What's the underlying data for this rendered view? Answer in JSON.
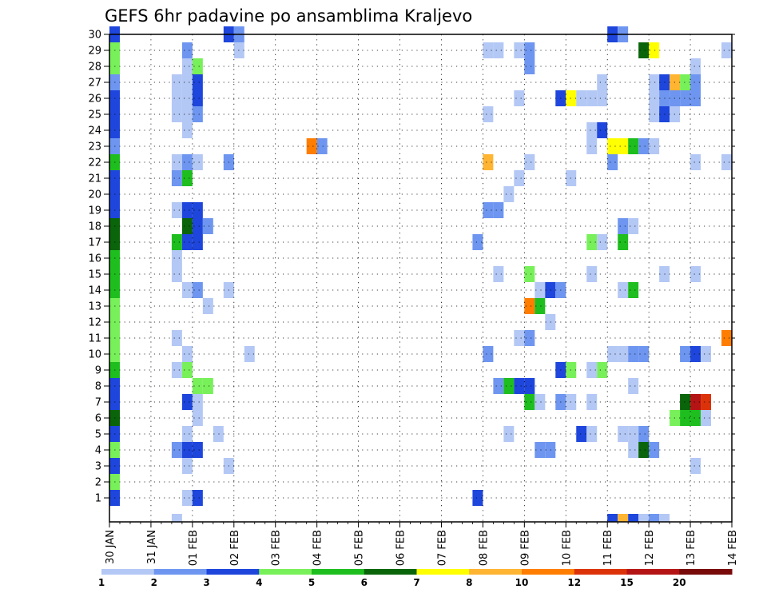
{
  "chart_data": {
    "type": "heatmap",
    "title": "GEFS 6hr padavine po ansamblima Kraljevo",
    "xlabel": "",
    "ylabel": "",
    "x_ticks": [
      "30 JAN",
      "31 JAN",
      "01 FEB",
      "02 FEB",
      "03 FEB",
      "04 FEB",
      "05 FEB",
      "06 FEB",
      "07 FEB",
      "08 FEB",
      "09 FEB",
      "10 FEB",
      "11 FEB",
      "12 FEB",
      "13 FEB",
      "14 FEB"
    ],
    "y_ticks": [
      1,
      2,
      3,
      4,
      5,
      6,
      7,
      8,
      9,
      10,
      11,
      12,
      13,
      14,
      15,
      16,
      17,
      18,
      19,
      20,
      21,
      22,
      23,
      24,
      25,
      26,
      27,
      28,
      29,
      30
    ],
    "x_unit": "6-hour steps from 30 JAN 00z",
    "ylim": [
      0,
      30
    ],
    "xlim": [
      0,
      60
    ],
    "grid": true,
    "colorbar": {
      "labels": [
        "1",
        "2",
        "3",
        "4",
        "5",
        "6",
        "7",
        "8",
        "10",
        "12",
        "15",
        "20"
      ],
      "label_positions": [
        0,
        1,
        2,
        3,
        4,
        5,
        6,
        7,
        8,
        9,
        10,
        11
      ],
      "colors": [
        "#b4c8f5",
        "#6e96f0",
        "#1e46dc",
        "#78f05a",
        "#1ebe1e",
        "#0a640a",
        "#ffff00",
        "#ffb432",
        "#ff7d00",
        "#dc320a",
        "#b41414",
        "#780a0a"
      ],
      "color_ranges": [
        "1-2",
        "2-3",
        "3-4",
        "4-5",
        "5-6",
        "6-7",
        "7-8",
        "8-10",
        "10-12",
        "12-15",
        "15-20",
        ">20"
      ]
    },
    "column0_colors": {
      "levels_descending_from_30": [
        "c",
        "d",
        "d",
        "b",
        "c",
        "c",
        "c",
        "b",
        "e",
        "c",
        "c",
        "c",
        "f",
        "f",
        "e",
        "e",
        "e",
        "d",
        "d",
        "d",
        "d",
        "e",
        "c",
        "c",
        "f",
        "c",
        "d",
        "c",
        "d",
        "c"
      ]
    },
    "cells": [
      [
        11,
        30,
        "c"
      ],
      [
        12,
        30,
        "b"
      ],
      [
        48,
        30,
        "c"
      ],
      [
        49,
        30,
        "b"
      ],
      [
        7,
        29,
        "b"
      ],
      [
        12,
        29,
        "a"
      ],
      [
        36,
        29,
        "a"
      ],
      [
        37,
        29,
        "a"
      ],
      [
        39,
        29,
        "a"
      ],
      [
        40,
        29,
        "b"
      ],
      [
        51,
        29,
        "f"
      ],
      [
        52,
        29,
        "g"
      ],
      [
        59,
        29,
        "a"
      ],
      [
        7,
        28,
        "a"
      ],
      [
        8,
        28,
        "d"
      ],
      [
        40,
        28,
        "b"
      ],
      [
        56,
        28,
        "a"
      ],
      [
        6,
        27,
        "a"
      ],
      [
        7,
        27,
        "a"
      ],
      [
        8,
        27,
        "c"
      ],
      [
        47,
        27,
        "a"
      ],
      [
        52,
        27,
        "a"
      ],
      [
        53,
        27,
        "c"
      ],
      [
        54,
        27,
        "h"
      ],
      [
        55,
        27,
        "d"
      ],
      [
        56,
        27,
        "b"
      ],
      [
        6,
        26,
        "a"
      ],
      [
        7,
        26,
        "a"
      ],
      [
        8,
        26,
        "c"
      ],
      [
        39,
        26,
        "a"
      ],
      [
        43,
        26,
        "c"
      ],
      [
        44,
        26,
        "g"
      ],
      [
        45,
        26,
        "a"
      ],
      [
        46,
        26,
        "a"
      ],
      [
        47,
        26,
        "a"
      ],
      [
        52,
        26,
        "a"
      ],
      [
        53,
        26,
        "b"
      ],
      [
        54,
        26,
        "b"
      ],
      [
        55,
        26,
        "b"
      ],
      [
        56,
        26,
        "b"
      ],
      [
        6,
        25,
        "a"
      ],
      [
        7,
        25,
        "a"
      ],
      [
        8,
        25,
        "b"
      ],
      [
        36,
        25,
        "a"
      ],
      [
        52,
        25,
        "a"
      ],
      [
        53,
        25,
        "c"
      ],
      [
        54,
        25,
        "a"
      ],
      [
        7,
        24,
        "a"
      ],
      [
        46,
        24,
        "a"
      ],
      [
        47,
        24,
        "c"
      ],
      [
        19,
        23,
        "i"
      ],
      [
        20,
        23,
        "b"
      ],
      [
        46,
        23,
        "a"
      ],
      [
        48,
        23,
        "g"
      ],
      [
        49,
        23,
        "g"
      ],
      [
        50,
        23,
        "e"
      ],
      [
        51,
        23,
        "b"
      ],
      [
        52,
        23,
        "a"
      ],
      [
        6,
        22,
        "a"
      ],
      [
        7,
        22,
        "b"
      ],
      [
        8,
        22,
        "a"
      ],
      [
        11,
        22,
        "b"
      ],
      [
        36,
        22,
        "h"
      ],
      [
        40,
        22,
        "a"
      ],
      [
        48,
        22,
        "b"
      ],
      [
        56,
        22,
        "a"
      ],
      [
        59,
        22,
        "a"
      ],
      [
        6,
        21,
        "b"
      ],
      [
        7,
        21,
        "e"
      ],
      [
        39,
        21,
        "a"
      ],
      [
        44,
        21,
        "a"
      ],
      [
        38,
        20,
        "a"
      ],
      [
        6,
        19,
        "a"
      ],
      [
        7,
        19,
        "c"
      ],
      [
        8,
        19,
        "c"
      ],
      [
        36,
        19,
        "b"
      ],
      [
        37,
        19,
        "b"
      ],
      [
        7,
        18,
        "f"
      ],
      [
        8,
        18,
        "c"
      ],
      [
        9,
        18,
        "b"
      ],
      [
        49,
        18,
        "b"
      ],
      [
        50,
        18,
        "a"
      ],
      [
        6,
        17,
        "e"
      ],
      [
        7,
        17,
        "c"
      ],
      [
        8,
        17,
        "c"
      ],
      [
        35,
        17,
        "b"
      ],
      [
        46,
        17,
        "d"
      ],
      [
        47,
        17,
        "a"
      ],
      [
        49,
        17,
        "e"
      ],
      [
        6,
        16,
        "a"
      ],
      [
        6,
        15,
        "a"
      ],
      [
        37,
        15,
        "a"
      ],
      [
        40,
        15,
        "d"
      ],
      [
        46,
        15,
        "a"
      ],
      [
        53,
        15,
        "a"
      ],
      [
        56,
        15,
        "a"
      ],
      [
        7,
        14,
        "a"
      ],
      [
        8,
        14,
        "b"
      ],
      [
        11,
        14,
        "a"
      ],
      [
        41,
        14,
        "a"
      ],
      [
        42,
        14,
        "c"
      ],
      [
        43,
        14,
        "b"
      ],
      [
        49,
        14,
        "a"
      ],
      [
        50,
        14,
        "e"
      ],
      [
        9,
        13,
        "a"
      ],
      [
        40,
        13,
        "i"
      ],
      [
        41,
        13,
        "e"
      ],
      [
        42,
        12,
        "a"
      ],
      [
        6,
        11,
        "a"
      ],
      [
        39,
        11,
        "a"
      ],
      [
        40,
        11,
        "b"
      ],
      [
        59,
        11,
        "i"
      ],
      [
        7,
        10,
        "a"
      ],
      [
        13,
        10,
        "a"
      ],
      [
        36,
        10,
        "b"
      ],
      [
        48,
        10,
        "a"
      ],
      [
        49,
        10,
        "a"
      ],
      [
        50,
        10,
        "b"
      ],
      [
        51,
        10,
        "b"
      ],
      [
        55,
        10,
        "b"
      ],
      [
        56,
        10,
        "c"
      ],
      [
        57,
        10,
        "a"
      ],
      [
        6,
        9,
        "a"
      ],
      [
        7,
        9,
        "d"
      ],
      [
        43,
        9,
        "c"
      ],
      [
        44,
        9,
        "d"
      ],
      [
        46,
        9,
        "a"
      ],
      [
        47,
        9,
        "d"
      ],
      [
        8,
        8,
        "d"
      ],
      [
        9,
        8,
        "d"
      ],
      [
        37,
        8,
        "b"
      ],
      [
        38,
        8,
        "e"
      ],
      [
        39,
        8,
        "c"
      ],
      [
        40,
        8,
        "c"
      ],
      [
        50,
        8,
        "a"
      ],
      [
        7,
        7,
        "c"
      ],
      [
        8,
        7,
        "a"
      ],
      [
        40,
        7,
        "e"
      ],
      [
        41,
        7,
        "a"
      ],
      [
        43,
        7,
        "b"
      ],
      [
        44,
        7,
        "a"
      ],
      [
        46,
        7,
        "a"
      ],
      [
        55,
        7,
        "f"
      ],
      [
        56,
        7,
        "k"
      ],
      [
        57,
        7,
        "j"
      ],
      [
        8,
        6,
        "a"
      ],
      [
        54,
        6,
        "d"
      ],
      [
        55,
        6,
        "e"
      ],
      [
        56,
        6,
        "e"
      ],
      [
        57,
        6,
        "a"
      ],
      [
        7,
        5,
        "a"
      ],
      [
        10,
        5,
        "a"
      ],
      [
        38,
        5,
        "a"
      ],
      [
        45,
        5,
        "c"
      ],
      [
        46,
        5,
        "a"
      ],
      [
        49,
        5,
        "a"
      ],
      [
        50,
        5,
        "a"
      ],
      [
        51,
        5,
        "b"
      ],
      [
        6,
        4,
        "b"
      ],
      [
        7,
        4,
        "c"
      ],
      [
        8,
        4,
        "c"
      ],
      [
        41,
        4,
        "b"
      ],
      [
        42,
        4,
        "b"
      ],
      [
        50,
        4,
        "a"
      ],
      [
        51,
        4,
        "f"
      ],
      [
        52,
        4,
        "b"
      ],
      [
        7,
        3,
        "a"
      ],
      [
        11,
        3,
        "a"
      ],
      [
        56,
        3,
        "a"
      ],
      [
        7,
        1,
        "a"
      ],
      [
        8,
        1,
        "c"
      ],
      [
        35,
        1,
        "c"
      ],
      [
        6,
        0,
        "a"
      ],
      [
        48,
        0,
        "c"
      ],
      [
        49,
        0,
        "h"
      ],
      [
        50,
        0,
        "c"
      ],
      [
        51,
        0,
        "a"
      ],
      [
        52,
        0,
        "b"
      ],
      [
        53,
        0,
        "a"
      ]
    ],
    "color_keys": {
      "a": 0,
      "b": 1,
      "c": 2,
      "d": 3,
      "e": 4,
      "f": 5,
      "g": 6,
      "h": 7,
      "i": 8,
      "j": 9,
      "k": 10,
      "l": 11
    }
  }
}
